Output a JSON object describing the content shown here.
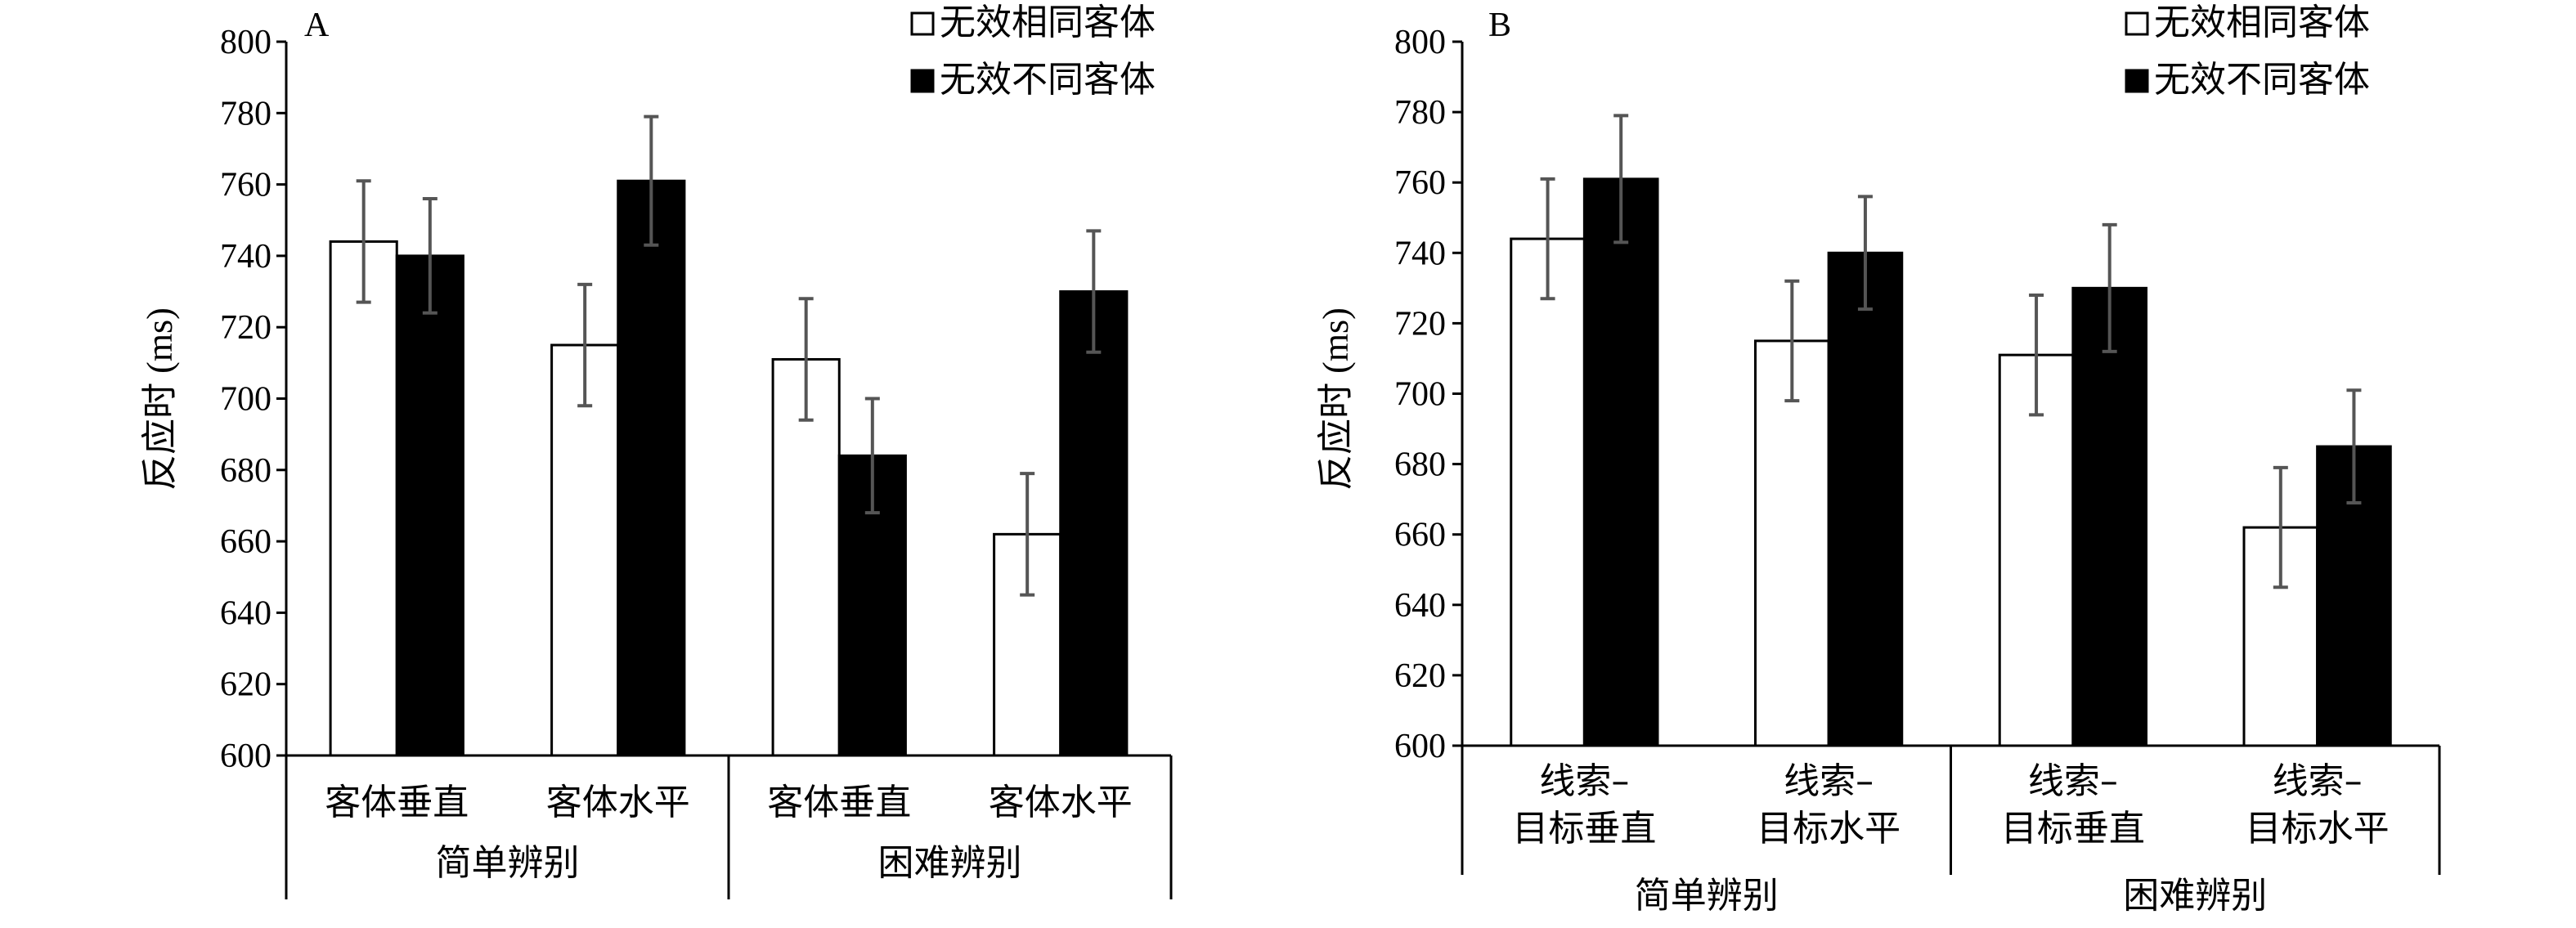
{
  "colors": {
    "open": "#ffffff",
    "filled": "#000000",
    "error_bar": "#555555"
  },
  "chart_data": [
    {
      "type": "bar",
      "panel": "A",
      "ylabel": "反应时 (ms)",
      "ylim": [
        600,
        800
      ],
      "yticks": [
        600,
        620,
        640,
        660,
        680,
        700,
        720,
        740,
        760,
        780,
        800
      ],
      "categories": [
        "客体垂直",
        "客体水平",
        "客体垂直",
        "客体水平"
      ],
      "groups": [
        "简单辨别",
        "困难辨别"
      ],
      "legend": "top-right",
      "series": [
        {
          "name": "无效相同客体",
          "style": "open",
          "values": [
            744,
            715,
            711,
            662
          ],
          "errors": [
            17,
            17,
            17,
            17
          ]
        },
        {
          "name": "无效不同客体",
          "style": "filled",
          "values": [
            740,
            761,
            684,
            730
          ],
          "errors": [
            16,
            18,
            16,
            17
          ]
        }
      ]
    },
    {
      "type": "bar",
      "panel": "B",
      "ylabel": "反应时 (ms)",
      "ylim": [
        600,
        800
      ],
      "yticks": [
        600,
        620,
        640,
        660,
        680,
        700,
        720,
        740,
        760,
        780,
        800
      ],
      "categories": [
        [
          "线索–",
          "目标垂直"
        ],
        [
          "线索–",
          "目标水平"
        ],
        [
          "线索–",
          "目标垂直"
        ],
        [
          "线索–",
          "目标水平"
        ]
      ],
      "groups": [
        "简单辨别",
        "困难辨别"
      ],
      "legend": "top-right",
      "series": [
        {
          "name": "无效相同客体",
          "style": "open",
          "values": [
            744,
            715,
            711,
            662
          ],
          "errors": [
            17,
            17,
            17,
            17
          ]
        },
        {
          "name": "无效不同客体",
          "style": "filled",
          "values": [
            761,
            740,
            730,
            685
          ],
          "errors": [
            18,
            16,
            18,
            16
          ]
        }
      ]
    }
  ]
}
